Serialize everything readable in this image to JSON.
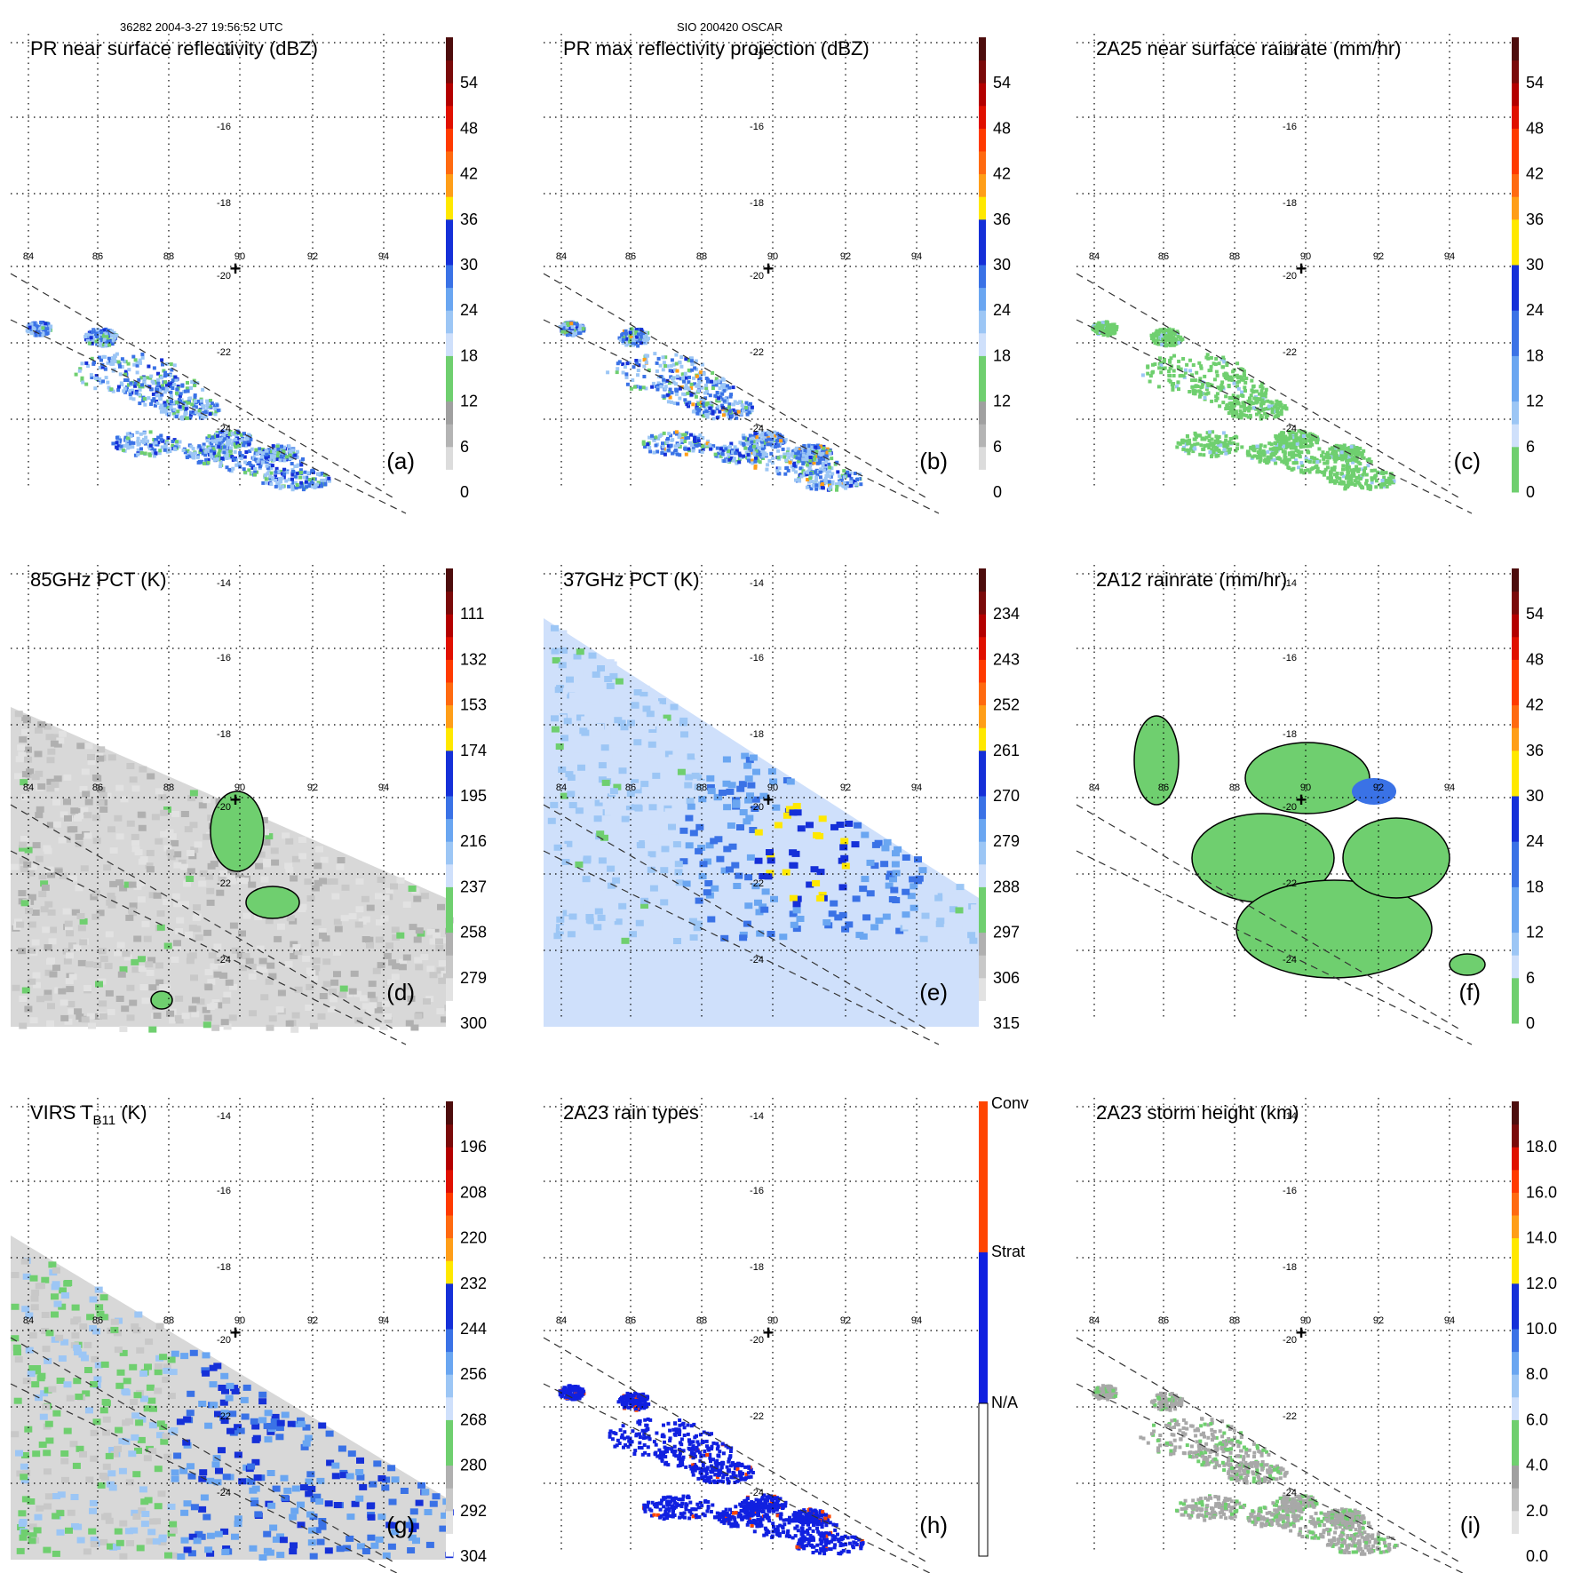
{
  "header": {
    "left": "36282 2004-3-27 19:56:52 UTC",
    "center": "SIO 200420 OSCAR"
  },
  "colors": {
    "gray_ramp": [
      "#ffffff",
      "#e6e6e6",
      "#cccccc",
      "#b3b3b3",
      "#999999"
    ],
    "green": "#6fcf6f",
    "blue_ramp": [
      "#cfe0fb",
      "#9cc6f5",
      "#6aa6f1",
      "#3a72e6",
      "#1530d8"
    ],
    "yellow": "#ffe800",
    "orange_red": [
      "#ffd21e",
      "#ff9e18",
      "#ff6a10",
      "#ff3a00",
      "#e01000",
      "#b30000",
      "#7a0a0a",
      "#4d0d0d"
    ],
    "rain_conv": "#ff4500",
    "rain_strat": "#1020e0"
  },
  "map": {
    "lon_labels": [
      "84",
      "86",
      "88",
      "90",
      "92",
      "94"
    ],
    "lat_labels": [
      "-14",
      "-16",
      "-18",
      "-20",
      "-22",
      "-24"
    ],
    "center_marker": "+"
  },
  "chart_data": [
    {
      "panel": "a",
      "type": "heatmap",
      "title": "PR near surface reflectivity (dBZ)",
      "letter": "(a)",
      "scale": "dbz",
      "colorbar_ticks": [
        "0",
        "6",
        "12",
        "18",
        "24",
        "30",
        "36",
        "42",
        "48",
        "54"
      ],
      "field": "pr_near"
    },
    {
      "panel": "b",
      "type": "heatmap",
      "title": "PR max reflectivity projection (dBZ)",
      "letter": "(b)",
      "scale": "dbz",
      "colorbar_ticks": [
        "0",
        "6",
        "12",
        "18",
        "24",
        "30",
        "36",
        "42",
        "48",
        "54"
      ],
      "field": "pr_max"
    },
    {
      "panel": "c",
      "type": "heatmap",
      "title": "2A25 near surface rainrate (mm/hr)",
      "letter": "(c)",
      "scale": "rain",
      "colorbar_ticks": [
        "0",
        "6",
        "12",
        "18",
        "24",
        "30",
        "36",
        "42",
        "48",
        "54"
      ],
      "field": "rain25"
    },
    {
      "panel": "d",
      "type": "heatmap",
      "title": "85GHz PCT (K)",
      "letter": "(d)",
      "scale": "pct",
      "colorbar_ticks": [
        "300",
        "279",
        "258",
        "237",
        "216",
        "195",
        "174",
        "153",
        "132",
        "111"
      ],
      "field": "pct85"
    },
    {
      "panel": "e",
      "type": "heatmap",
      "title": "37GHz PCT (K)",
      "letter": "(e)",
      "scale": "pct",
      "colorbar_ticks": [
        "315",
        "306",
        "297",
        "288",
        "279",
        "270",
        "261",
        "252",
        "243",
        "234"
      ],
      "field": "pct37"
    },
    {
      "panel": "f",
      "type": "heatmap",
      "title": "2A12 rainrate (mm/hr)",
      "letter": "(f)",
      "scale": "rain",
      "colorbar_ticks": [
        "0",
        "6",
        "12",
        "18",
        "24",
        "30",
        "36",
        "42",
        "48",
        "54"
      ],
      "field": "rain12"
    },
    {
      "panel": "g",
      "type": "heatmap",
      "title": "VIRS T",
      "title_sub": "B11",
      "title_tail": " (K)",
      "letter": "(g)",
      "scale": "pct",
      "colorbar_ticks": [
        "304",
        "292",
        "280",
        "268",
        "256",
        "244",
        "232",
        "220",
        "208",
        "196"
      ],
      "field": "virs"
    },
    {
      "panel": "h",
      "type": "heatmap",
      "title": "2A23 rain types",
      "letter": "(h)",
      "scale": "types",
      "colorbar_ticks": [
        "N/A",
        "Strat",
        "Conv"
      ],
      "field": "types"
    },
    {
      "panel": "i",
      "type": "heatmap",
      "title": "2A23 storm height (km)",
      "letter": "(i)",
      "scale": "height",
      "colorbar_ticks": [
        "0.0",
        "2.0",
        "4.0",
        "6.0",
        "8.0",
        "10.0",
        "12.0",
        "14.0",
        "16.0",
        "18.0"
      ],
      "field": "height"
    }
  ]
}
